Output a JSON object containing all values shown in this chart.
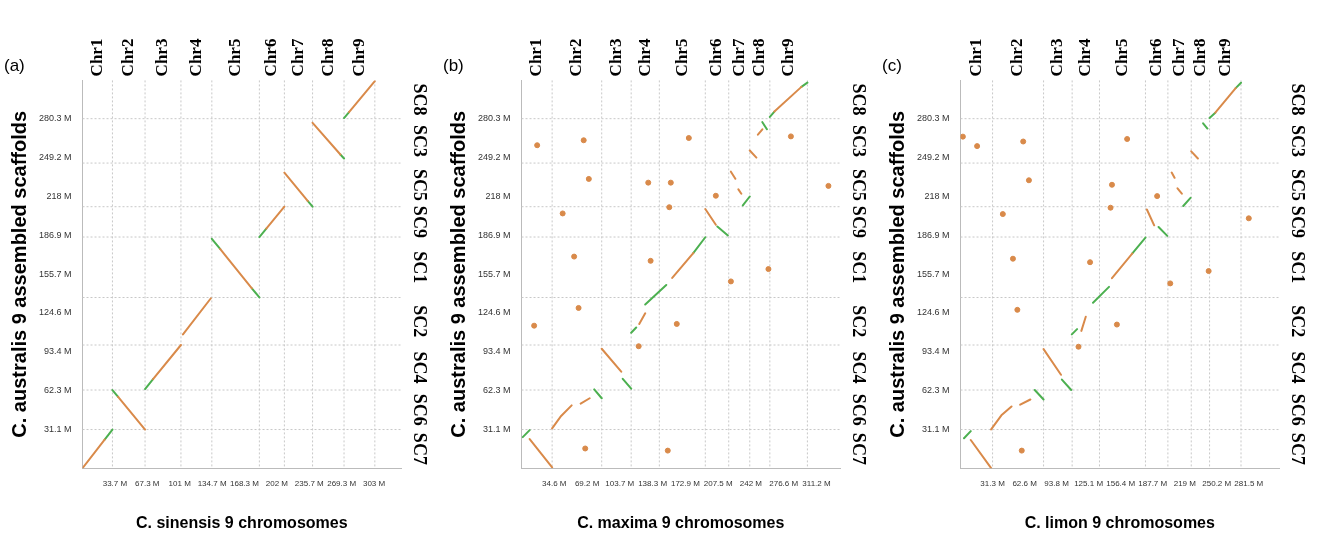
{
  "chart_data": [
    {
      "type": "line",
      "title": "(a)",
      "xlabel": "C. sinensis 9 chromosomes",
      "ylabel": "C. australis 9 assembled scaffolds",
      "xlim": [
        0,
        331
      ],
      "xticks": [
        {
          "value": 33.7,
          "label": "33.7 M"
        },
        {
          "value": 67.3,
          "label": "67.3 M"
        },
        {
          "value": 101,
          "label": "101 M"
        },
        {
          "value": 134.7,
          "label": "134.7 M"
        },
        {
          "value": 168.3,
          "label": "168.3 M"
        },
        {
          "value": 202,
          "label": "202 M"
        },
        {
          "value": 235.7,
          "label": "235.7 M"
        },
        {
          "value": 269.3,
          "label": "269.3 M"
        },
        {
          "value": 303,
          "label": "303 M"
        }
      ],
      "ylim": [
        0,
        311
      ],
      "yticks": [
        {
          "value": 31.1,
          "label": "31.1 M"
        },
        {
          "value": 62.3,
          "label": "62.3 M"
        },
        {
          "value": 93.4,
          "label": "93.4 M"
        },
        {
          "value": 124.6,
          "label": "124.6 M"
        },
        {
          "value": 155.7,
          "label": "155.7 M"
        },
        {
          "value": 186.9,
          "label": "186.9 M"
        },
        {
          "value": 218,
          "label": "218 M"
        },
        {
          "value": 249.2,
          "label": "249.2 M"
        },
        {
          "value": 280.3,
          "label": "280.3 M"
        }
      ],
      "annotations": [
        "Chr1",
        "Chr2",
        "Chr3",
        "Chr4",
        "Chr5",
        "Chr6",
        "Chr7",
        "Chr8",
        "Chr9",
        "SC8",
        "SC3",
        "SC5",
        "SC9",
        "SC1",
        "SC2",
        "SC4",
        "SC6",
        "SC7"
      ],
      "ref_lines": [
        {
          "axis": "x",
          "value": 31.1,
          "color": "#c8c8c8",
          "line_style": "dotted"
        },
        {
          "axis": "x",
          "value": 65,
          "color": "#c8c8c8",
          "line_style": "dotted"
        },
        {
          "axis": "x",
          "value": 102.3,
          "color": "#c8c8c8",
          "line_style": "dotted"
        },
        {
          "axis": "x",
          "value": 134.4,
          "color": "#c8c8c8",
          "line_style": "dotted"
        },
        {
          "axis": "x",
          "value": 183.8,
          "color": "#c8c8c8",
          "line_style": "dotted"
        },
        {
          "axis": "x",
          "value": 209.8,
          "color": "#c8c8c8",
          "line_style": "dotted"
        },
        {
          "axis": "x",
          "value": 239.1,
          "color": "#c8c8c8",
          "line_style": "dotted"
        },
        {
          "axis": "x",
          "value": 271.8,
          "color": "#c8c8c8",
          "line_style": "dotted"
        },
        {
          "axis": "x",
          "value": 303.8,
          "color": "#c8c8c8",
          "line_style": "dotted"
        },
        {
          "axis": "y",
          "value": 31,
          "color": "#c8c8c8",
          "line_style": "dotted"
        },
        {
          "axis": "y",
          "value": 62.7,
          "color": "#c8c8c8",
          "line_style": "dotted"
        },
        {
          "axis": "y",
          "value": 98.8,
          "color": "#c8c8c8",
          "line_style": "dotted"
        },
        {
          "axis": "y",
          "value": 136.9,
          "color": "#c8c8c8",
          "line_style": "dotted"
        },
        {
          "axis": "y",
          "value": 185.4,
          "color": "#c8c8c8",
          "line_style": "dotted"
        },
        {
          "axis": "y",
          "value": 209.7,
          "color": "#c8c8c8",
          "line_style": "dotted"
        },
        {
          "axis": "y",
          "value": 244.7,
          "color": "#c8c8c8",
          "line_style": "dotted"
        },
        {
          "axis": "y",
          "value": 280.3,
          "color": "#c8c8c8",
          "line_style": "dotted"
        }
      ],
      "series": [
        {
          "type": "line",
          "color": "#d98a4a",
          "x": [
            0,
            23,
            null,
            37,
            65,
            null,
            73.3,
            102.3,
            null,
            104.4,
            133.4,
            null,
            143,
            176,
            null,
            191,
            209.8,
            null,
            209.8,
            234,
            null,
            239.1,
            268,
            null,
            277,
            303.8
          ],
          "values": [
            0,
            22.9,
            null,
            57.2,
            31,
            null,
            71.4,
            98.8,
            null,
            107.3,
            136.3,
            null,
            175.8,
            144.3,
            null,
            192.1,
            209.7,
            null,
            237,
            214.4,
            null,
            277,
            251.6,
            null,
            285.6,
            310.5
          ]
        },
        {
          "type": "line",
          "color": "#4cb050",
          "x": [
            23,
            31.1,
            null,
            31.1,
            37,
            null,
            65,
            73.3,
            null,
            134.4,
            143,
            null,
            176,
            183.8,
            null,
            183.8,
            191,
            null,
            234,
            239.1,
            null,
            268,
            271.8,
            null,
            271.8,
            277
          ],
          "values": [
            22.9,
            31,
            null,
            62.7,
            57.2,
            null,
            63.5,
            71.4,
            null,
            184,
            175.8,
            null,
            144.3,
            136.9,
            null,
            185.4,
            192.1,
            null,
            214.4,
            209.7,
            null,
            251.6,
            248.4,
            null,
            280.8,
            285.6
          ]
        }
      ]
    },
    {
      "type": "line",
      "title": "(b)",
      "xlabel": "C. maxima 9 chromosomes",
      "ylabel": "C. australis 9 assembled scaffolds",
      "xlim": [
        0,
        336
      ],
      "xticks": [
        {
          "value": 34.6,
          "label": "34.6 M"
        },
        {
          "value": 69.2,
          "label": "69.2 M"
        },
        {
          "value": 103.7,
          "label": "103.7 M"
        },
        {
          "value": 138.3,
          "label": "138.3 M"
        },
        {
          "value": 172.9,
          "label": "172.9 M"
        },
        {
          "value": 207.5,
          "label": "207.5 M"
        },
        {
          "value": 242,
          "label": "242 M"
        },
        {
          "value": 276.6,
          "label": "276.6 M"
        },
        {
          "value": 311.2,
          "label": "311.2 M"
        }
      ],
      "ylim": [
        0,
        311
      ],
      "yticks": [
        {
          "value": 31.1,
          "label": "31.1 M"
        },
        {
          "value": 62.3,
          "label": "62.3 M"
        },
        {
          "value": 93.4,
          "label": "93.4 M"
        },
        {
          "value": 124.6,
          "label": "124.6 M"
        },
        {
          "value": 155.7,
          "label": "155.7 M"
        },
        {
          "value": 186.9,
          "label": "186.9 M"
        },
        {
          "value": 218,
          "label": "218 M"
        },
        {
          "value": 249.2,
          "label": "249.2 M"
        },
        {
          "value": 280.3,
          "label": "280.3 M"
        }
      ],
      "annotations": [
        "Chr1",
        "Chr2",
        "Chr3",
        "Chr4",
        "Chr5",
        "Chr6",
        "Chr7",
        "Chr8",
        "Chr9",
        "SC8",
        "SC3",
        "SC5",
        "SC9",
        "SC1",
        "SC2",
        "SC4",
        "SC6",
        "SC7"
      ],
      "ref_lines": [
        {
          "axis": "x",
          "value": 32.3,
          "color": "#c8c8c8",
          "line_style": "dotted"
        },
        {
          "axis": "x",
          "value": 84.6,
          "color": "#c8c8c8",
          "line_style": "dotted"
        },
        {
          "axis": "x",
          "value": 115.7,
          "color": "#c8c8c8",
          "line_style": "dotted"
        },
        {
          "axis": "x",
          "value": 145.4,
          "color": "#c8c8c8",
          "line_style": "dotted"
        },
        {
          "axis": "x",
          "value": 193.9,
          "color": "#c8c8c8",
          "line_style": "dotted"
        },
        {
          "axis": "x",
          "value": 218.6,
          "color": "#c8c8c8",
          "line_style": "dotted"
        },
        {
          "axis": "x",
          "value": 240.8,
          "color": "#c8c8c8",
          "line_style": "dotted"
        },
        {
          "axis": "x",
          "value": 262,
          "color": "#c8c8c8",
          "line_style": "dotted"
        },
        {
          "axis": "x",
          "value": 301.6,
          "color": "#c8c8c8",
          "line_style": "dotted"
        },
        {
          "axis": "y",
          "value": 31,
          "color": "#c8c8c8",
          "line_style": "dotted"
        },
        {
          "axis": "y",
          "value": 62.7,
          "color": "#c8c8c8",
          "line_style": "dotted"
        },
        {
          "axis": "y",
          "value": 98.8,
          "color": "#c8c8c8",
          "line_style": "dotted"
        },
        {
          "axis": "y",
          "value": 136.9,
          "color": "#c8c8c8",
          "line_style": "dotted"
        },
        {
          "axis": "y",
          "value": 185.4,
          "color": "#c8c8c8",
          "line_style": "dotted"
        },
        {
          "axis": "y",
          "value": 209.7,
          "color": "#c8c8c8",
          "line_style": "dotted"
        },
        {
          "axis": "y",
          "value": 244.7,
          "color": "#c8c8c8",
          "line_style": "dotted"
        },
        {
          "axis": "y",
          "value": 280.3,
          "color": "#c8c8c8",
          "line_style": "dotted"
        }
      ],
      "series": [
        {
          "type": "line",
          "color": "#d98a4a",
          "x": [
            8.6,
            32.3,
            null,
            32.3,
            41.8,
            52.9,
            null,
            62.4,
            71.9,
            null,
            84.6,
            105.2,
            null,
            124.2,
            130.5,
            null,
            159,
            181.2,
            null,
            193.9,
            205,
            null,
            220.9,
            225.6,
            null,
            228.8,
            231.9,
            null,
            240.8,
            247.8,
            null,
            249.4,
            254.1,
            null,
            266.8,
            295.3
          ],
          "values": [
            23.4,
            0.7,
            null,
            31.9,
            41.9,
            50.4,
            null,
            51.8,
            56.1,
            null,
            95.8,
            77.4,
            null,
            115.7,
            124.2,
            null,
            152.6,
            172.5,
            null,
            207.9,
            195.2,
            null,
            237.8,
            232.1,
            null,
            223.6,
            220.1,
            null,
            254.8,
            249.1,
            null,
            267.5,
            271.8,
            null,
            286,
            305.8
          ]
        },
        {
          "type": "line",
          "color": "#4cb050",
          "x": [
            1.3,
            8.6,
            null,
            76.7,
            84.6,
            null,
            106.8,
            115.7,
            null,
            115.7,
            121,
            null,
            130.5,
            152.7,
            null,
            181.2,
            193.9,
            null,
            206.6,
            217.7,
            null,
            233.5,
            240.8,
            null,
            254.1,
            258.9,
            null,
            262,
            266.8,
            null,
            295.3,
            301.6
          ],
          "values": [
            24.9,
            30.5,
            null,
            63.2,
            56.1,
            null,
            71.7,
            63.8,
            null,
            108.6,
            112.8,
            null,
            131.3,
            146.9,
            null,
            172.5,
            185.2,
            null,
            193.8,
            186.7,
            null,
            210.8,
            217.9,
            null,
            277.5,
            271.8,
            null,
            281.7,
            286,
            null,
            305.8,
            309.2
          ]
        },
        {
          "type": "scatter",
          "color": "#d98a4a",
          "x": [
            16.5,
            65.6,
            176.5,
            71,
            157.5,
            133.7,
            43.4,
            155.9,
            55.5,
            136.2,
            60.2,
            13.3,
            123.6,
            67.2,
            260.5,
            220.9,
            205,
            323.8,
            284.2,
            163.8,
            154.3
          ],
          "values": [
            259,
            263,
            264.8,
            232,
            229,
            229,
            204.3,
            209.3,
            169.7,
            166.3,
            128.5,
            114.3,
            97.8,
            15.8,
            159.7,
            149.8,
            218.5,
            226.4,
            266.1,
            115.7,
            14.1
          ]
        }
      ]
    },
    {
      "type": "line",
      "title": "(c)",
      "xlabel": "C. limon 9 chromosomes",
      "ylabel": "C. australis 9 assembled scaffolds",
      "xlim": [
        0,
        311
      ],
      "xticks": [
        {
          "value": 31.3,
          "label": "31.3 M"
        },
        {
          "value": 62.6,
          "label": "62.6 M"
        },
        {
          "value": 93.8,
          "label": "93.8 M"
        },
        {
          "value": 125.1,
          "label": "125.1 M"
        },
        {
          "value": 156.4,
          "label": "156.4 M"
        },
        {
          "value": 187.7,
          "label": "187.7 M"
        },
        {
          "value": 219,
          "label": "219 M"
        },
        {
          "value": 250.2,
          "label": "250.2 M"
        },
        {
          "value": 281.5,
          "label": "281.5 M"
        }
      ],
      "ylim": [
        0,
        311
      ],
      "yticks": [
        {
          "value": 31.1,
          "label": "31.1 M"
        },
        {
          "value": 62.3,
          "label": "62.3 M"
        },
        {
          "value": 93.4,
          "label": "93.4 M"
        },
        {
          "value": 124.6,
          "label": "124.6 M"
        },
        {
          "value": 155.7,
          "label": "155.7 M"
        },
        {
          "value": 186.9,
          "label": "186.9 M"
        },
        {
          "value": 218,
          "label": "218 M"
        },
        {
          "value": 249.2,
          "label": "249.2 M"
        },
        {
          "value": 280.3,
          "label": "280.3 M"
        }
      ],
      "annotations": [
        "Chr1",
        "Chr2",
        "Chr3",
        "Chr4",
        "Chr5",
        "Chr6",
        "Chr7",
        "Chr8",
        "Chr9",
        "SC8",
        "SC3",
        "SC5",
        "SC9",
        "SC1",
        "SC2",
        "SC4",
        "SC6",
        "SC7"
      ],
      "ref_lines": [
        {
          "axis": "x",
          "value": 31.3,
          "color": "#c8c8c8",
          "line_style": "dotted"
        },
        {
          "axis": "x",
          "value": 81.1,
          "color": "#c8c8c8",
          "line_style": "dotted"
        },
        {
          "axis": "x",
          "value": 109,
          "color": "#c8c8c8",
          "line_style": "dotted"
        },
        {
          "axis": "x",
          "value": 135.7,
          "color": "#c8c8c8",
          "line_style": "dotted"
        },
        {
          "axis": "x",
          "value": 180.6,
          "color": "#c8c8c8",
          "line_style": "dotted"
        },
        {
          "axis": "x",
          "value": 202.5,
          "color": "#c8c8c8",
          "line_style": "dotted"
        },
        {
          "axis": "x",
          "value": 225.3,
          "color": "#c8c8c8",
          "line_style": "dotted"
        },
        {
          "axis": "x",
          "value": 243.2,
          "color": "#c8c8c8",
          "line_style": "dotted"
        },
        {
          "axis": "x",
          "value": 273.9,
          "color": "#c8c8c8",
          "line_style": "dotted"
        },
        {
          "axis": "y",
          "value": 31,
          "color": "#c8c8c8",
          "line_style": "dotted"
        },
        {
          "axis": "y",
          "value": 62.7,
          "color": "#c8c8c8",
          "line_style": "dotted"
        },
        {
          "axis": "y",
          "value": 98.8,
          "color": "#c8c8c8",
          "line_style": "dotted"
        },
        {
          "axis": "y",
          "value": 136.9,
          "color": "#c8c8c8",
          "line_style": "dotted"
        },
        {
          "axis": "y",
          "value": 185.4,
          "color": "#c8c8c8",
          "line_style": "dotted"
        },
        {
          "axis": "y",
          "value": 209.7,
          "color": "#c8c8c8",
          "line_style": "dotted"
        },
        {
          "axis": "y",
          "value": 244.7,
          "color": "#c8c8c8",
          "line_style": "dotted"
        },
        {
          "axis": "y",
          "value": 280.3,
          "color": "#c8c8c8",
          "line_style": "dotted"
        }
      ],
      "series": [
        {
          "type": "line",
          "color": "#d98a4a",
          "x": [
            10,
            29.9,
            null,
            29.9,
            39.9,
            49.8,
            null,
            58.3,
            68.2,
            null,
            81.1,
            98.1,
            null,
            118,
            122.3,
            null,
            147.9,
            167.8,
            null,
            182,
            189.1,
            null,
            206.2,
            209,
            null,
            211.9,
            216.1,
            null,
            225.3,
            231.8,
            null,
            248.8,
            268.7
          ],
          "values": [
            22.6,
            0.1,
            null,
            31.1,
            42.4,
            49.5,
            null,
            50.9,
            55.1,
            null,
            95.5,
            74.9,
            null,
            110.1,
            121.4,
            null,
            152.4,
            172.2,
            null,
            207.5,
            194.8,
            null,
            237.1,
            232.9,
            null,
            224.4,
            220.1,
            null,
            254.1,
            248.4,
            null,
            285.1,
            304.8
          ]
        },
        {
          "type": "line",
          "color": "#4cb050",
          "x": [
            3.4,
            10,
            null,
            72.5,
            81.1,
            null,
            99,
            108.1,
            null,
            108.7,
            113.8,
            null,
            129.4,
            145,
            null,
            167.8,
            180.6,
            null,
            193.4,
            201.9,
            null,
            217.5,
            224.6,
            null,
            236.9,
            241.1,
            null,
            243.2,
            248.8,
            null,
            268.7,
            273.9
          ],
          "values": [
            24,
            29.7,
            null,
            62.7,
            55.1,
            null,
            71.1,
            62.7,
            null,
            107.3,
            111.5,
            null,
            132.7,
            145.4,
            null,
            172.2,
            184.9,
            null,
            193.4,
            186.3,
            null,
            210.3,
            216.8,
            null,
            276.6,
            272.4,
            null,
            280.9,
            285.1,
            null,
            304.8,
            309.1
          ]
        },
        {
          "type": "scatter",
          "color": "#d98a4a",
          "x": [
            2.3,
            16.2,
            61.2,
            66.8,
            41.3,
            51.2,
            55.5,
            162.7,
            147.9,
            192,
            146.5,
            126.5,
            152.7,
            115.2,
            204.8,
            242.3,
            59.8,
            281.5
          ],
          "values": [
            265.9,
            258.3,
            262,
            230.9,
            203.8,
            168,
            127,
            264,
            227.3,
            218.2,
            208.9,
            165.2,
            115.2,
            97.4,
            148.2,
            158.1,
            14.1,
            200.4
          ]
        }
      ]
    }
  ]
}
